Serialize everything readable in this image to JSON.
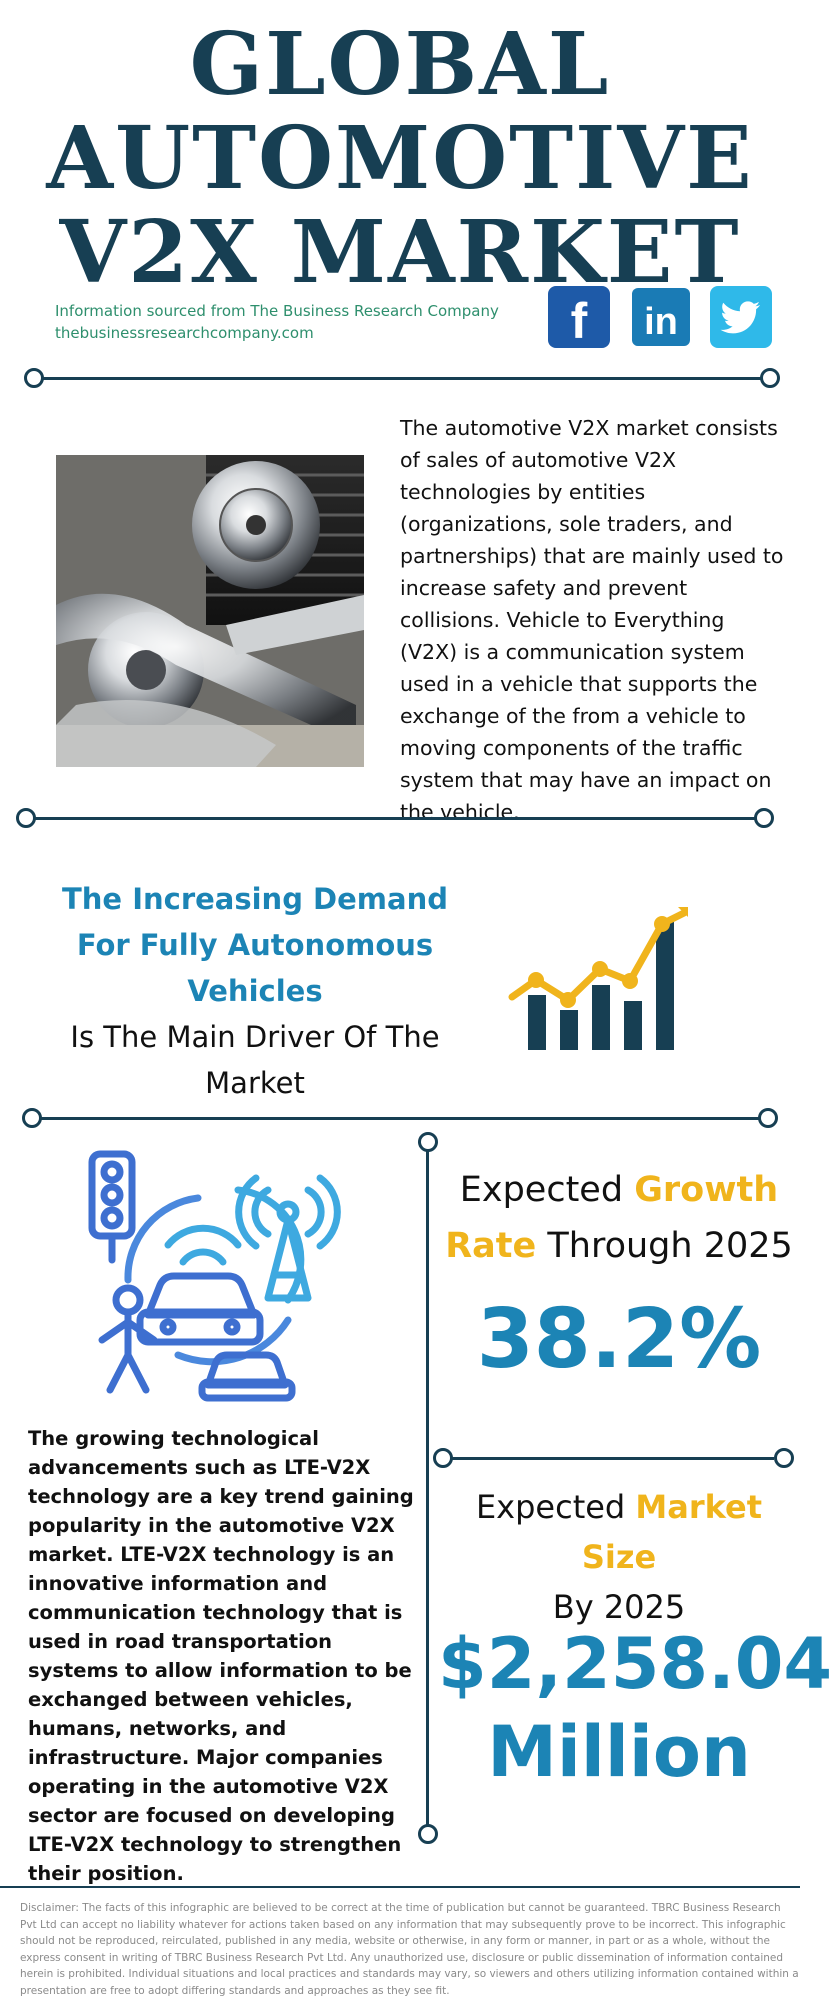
{
  "header": {
    "title_line1": "GLOBAL",
    "title_line2": "AUTOMOTIVE",
    "title_line3": "V2X MARKET",
    "source_line1": "Information sourced from The Business Research Company",
    "source_line2": "thebusinessresearchcompany.com"
  },
  "social": {
    "facebook": "f",
    "linkedin": "in",
    "twitter_icon": "twitter-bird-icon"
  },
  "intro": {
    "text": "The automotive V2X market consists of sales of automotive V2X technologies by entities (organizations, sole traders, and partnerships) that are mainly used to increase safety and prevent collisions. Vehicle to Everything (V2X) is a communication system used in a vehicle that supports the exchange of the from a vehicle to moving components of the traffic system that may have an impact on the vehicle."
  },
  "driver": {
    "highlight": "The Increasing Demand For Fully Autonomous Vehicles",
    "rest": "Is The Main Driver Of The Market"
  },
  "trend": {
    "text": "The growing technological advancements such as LTE-V2X technology are a key trend gaining popularity in the automotive V2X market. LTE-V2X technology is an innovative information and communication technology that is used in road transportation systems to allow information to be exchanged between vehicles, humans, networks, and infrastructure. Major companies operating in the automotive V2X sector are focused on developing LTE-V2X technology to strengthen their position."
  },
  "growth": {
    "label_pre": "Expected ",
    "label_gold1": "Growth",
    "label_gold2": "Rate",
    "label_post": " Through 2025",
    "value": "38.2%"
  },
  "size": {
    "label_pre": "Expected ",
    "label_gold": "Market Size",
    "label_post": "By 2025",
    "value_line1": "$2,258.04",
    "value_line2": "Million"
  },
  "disclaimer": "Disclaimer: The facts of this infographic are believed to be correct at the time of publication but cannot be guaranteed. TBRC Business Research Pvt Ltd can accept no liability whatever for actions taken based on any information that may subsequently prove to be incorrect. This infographic should not be reproduced, reirculated, published in any media, website or otherwise, in any form or manner, in part or as a whole, without the express consent in writing of TBRC Business Research Pvt Ltd. Any unauthorized use, disclosure or public dissemination of information contained herein is prohibited. Individual situations and local practices and standards may vary, so viewers and others utilizing information contained within a presentation are free to adopt differing standards and approaches as they see fit.",
  "colors": {
    "navy": "#173f53",
    "blue": "#1c84b5",
    "gold": "#f0b41c",
    "green": "#2e8f6d"
  }
}
